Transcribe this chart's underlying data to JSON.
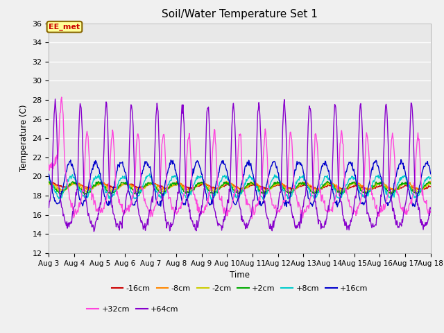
{
  "title": "Soil/Water Temperature Set 1",
  "xlabel": "Time",
  "ylabel": "Temperature (C)",
  "ylim": [
    12,
    36
  ],
  "xlim": [
    0,
    360
  ],
  "yticks": [
    12,
    14,
    16,
    18,
    20,
    22,
    24,
    26,
    28,
    30,
    32,
    34,
    36
  ],
  "xtick_labels": [
    "Aug 3",
    "Aug 4",
    "Aug 5",
    "Aug 6",
    "Aug 7",
    "Aug 8",
    "Aug 9",
    "Aug 10",
    "Aug 11",
    "Aug 12",
    "Aug 13",
    "Aug 14",
    "Aug 15",
    "Aug 16",
    "Aug 17",
    "Aug 18"
  ],
  "xtick_positions": [
    0,
    24,
    48,
    72,
    96,
    120,
    144,
    168,
    192,
    216,
    240,
    264,
    288,
    312,
    336,
    360
  ],
  "colors": {
    "-16cm": "#cc0000",
    "-8cm": "#ff8800",
    "-2cm": "#cccc00",
    "+2cm": "#00aa00",
    "+8cm": "#00cccc",
    "+16cm": "#0000cc",
    "+32cm": "#ff44dd",
    "+64cm": "#8800cc"
  },
  "series_order": [
    "-16cm",
    "-8cm",
    "-2cm",
    "+2cm",
    "+8cm",
    "+16cm",
    "+32cm",
    "+64cm"
  ],
  "annotation_text": "EE_met",
  "annotation_color": "#cc0000",
  "annotation_bg": "#ffff99",
  "annotation_border": "#886600",
  "plot_bg": "#e8e8e8",
  "fig_bg": "#f0f0f0",
  "grid_color": "#ffffff",
  "title_fontsize": 11,
  "figsize": [
    6.4,
    4.8
  ],
  "dpi": 100
}
